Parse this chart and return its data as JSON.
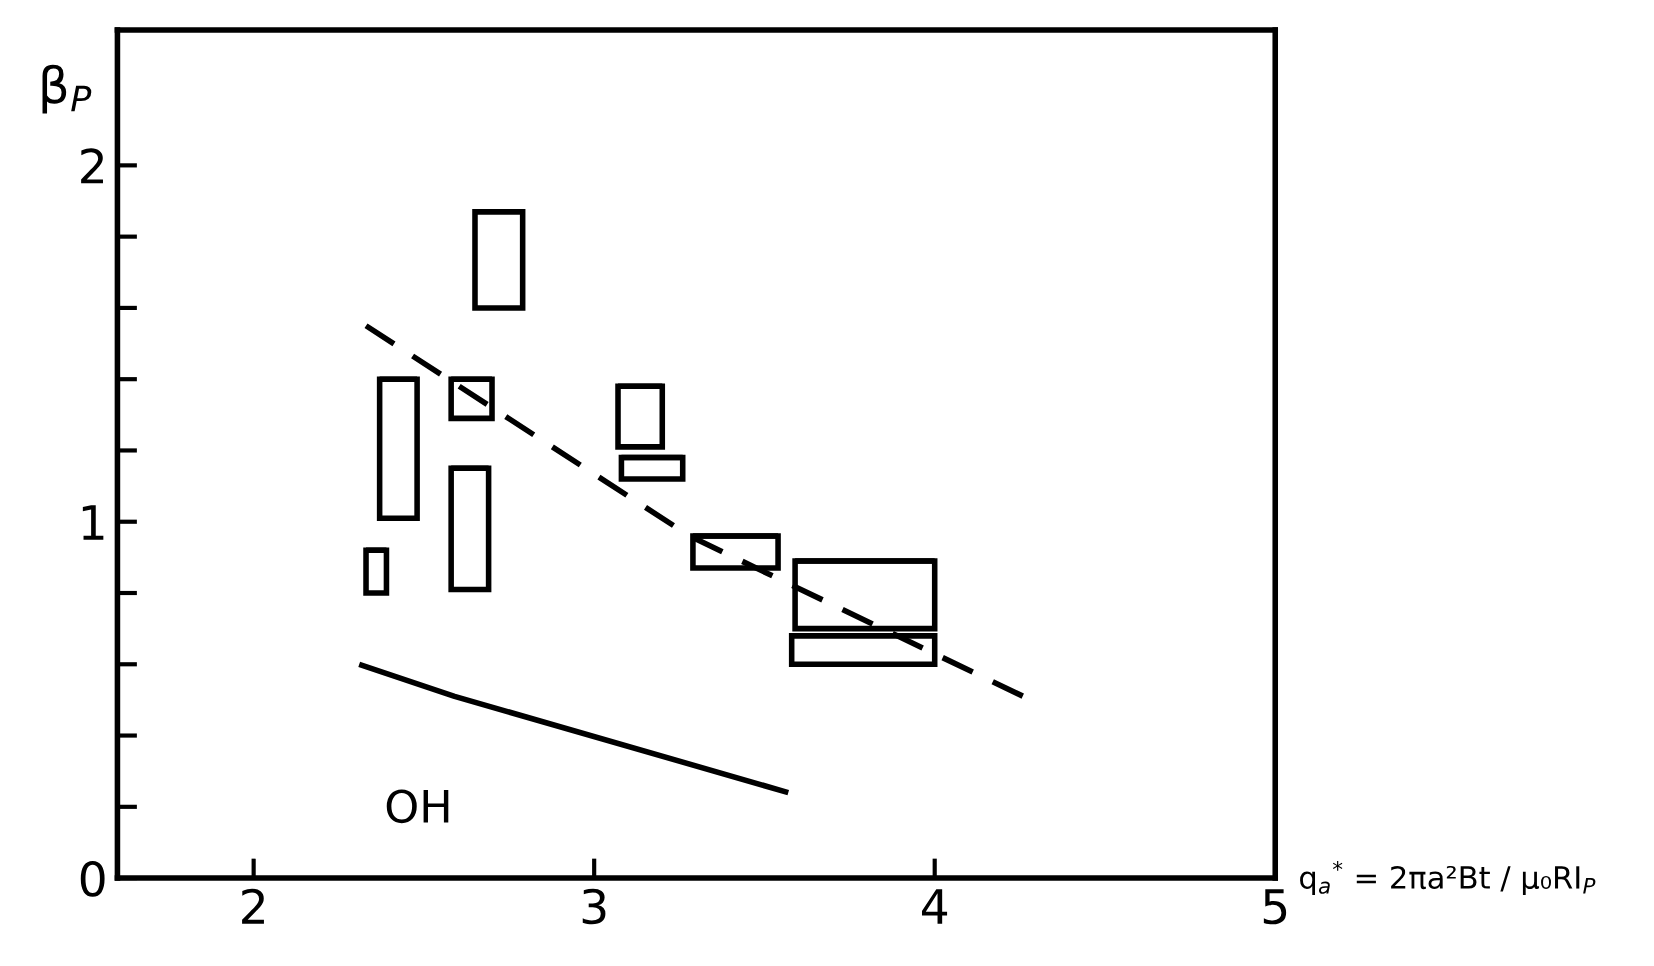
{
  "chart_data": {
    "type": "bar",
    "xlabel": "q$_{a}$$^{*}$ = 2πa²Bt / μ₀RI$_{P}$",
    "ylabel": "β$_{P}$",
    "xlim": [
      1.6,
      5
    ],
    "ylim": [
      0,
      2.38
    ],
    "xticks": [
      2,
      3,
      4,
      5
    ],
    "yticks": [
      0,
      {
        "value": 0.2,
        "label": null
      },
      {
        "value": 0.4,
        "label": null
      },
      {
        "value": 0.6,
        "label": null
      },
      {
        "value": 0.8,
        "label": null
      },
      1,
      {
        "value": 1.2,
        "label": null
      },
      {
        "value": 1.4,
        "label": null
      },
      {
        "value": 1.6,
        "label": null
      },
      {
        "value": 1.8,
        "label": null
      },
      2
    ],
    "grid": false,
    "legend": false,
    "marker": "none",
    "series": [
      {
        "color": "#000000",
        "x": [
          2.36,
          2.425,
          2.635,
          2.64,
          2.72,
          3.135,
          3.17,
          3.415,
          3.79,
          3.795
        ],
        "base": [
          0.8,
          1.01,
          0.81,
          1.29,
          1.6,
          1.21,
          1.12,
          0.87,
          0.6,
          0.7
        ],
        "values": [
          0.12,
          0.39,
          0.34,
          0.11,
          0.27,
          0.17,
          0.06,
          0.09,
          0.08,
          0.19
        ],
        "xerrors": [
          [
            2.33,
            2.39
          ],
          [
            2.37,
            2.48
          ],
          [
            2.58,
            2.69
          ],
          [
            2.58,
            2.7
          ],
          [
            2.65,
            2.79
          ],
          [
            3.07,
            3.2
          ],
          [
            3.08,
            3.26
          ],
          [
            3.29,
            3.54
          ],
          [
            3.58,
            4.0
          ],
          [
            3.59,
            4.0
          ]
        ]
      },
      {
        "type": "line",
        "line_style": "dashed",
        "color": "#000000",
        "x": [
          2.33,
          3.28,
          4.26
        ],
        "values": [
          1.55,
          0.96,
          0.51
        ]
      },
      {
        "type": "line",
        "line_style": "solid",
        "color": "#000000",
        "x": [
          2.31,
          2.59,
          3.57
        ],
        "values": [
          0.6,
          0.51,
          0.24
        ]
      }
    ],
    "annotations": [
      "OH"
    ]
  }
}
